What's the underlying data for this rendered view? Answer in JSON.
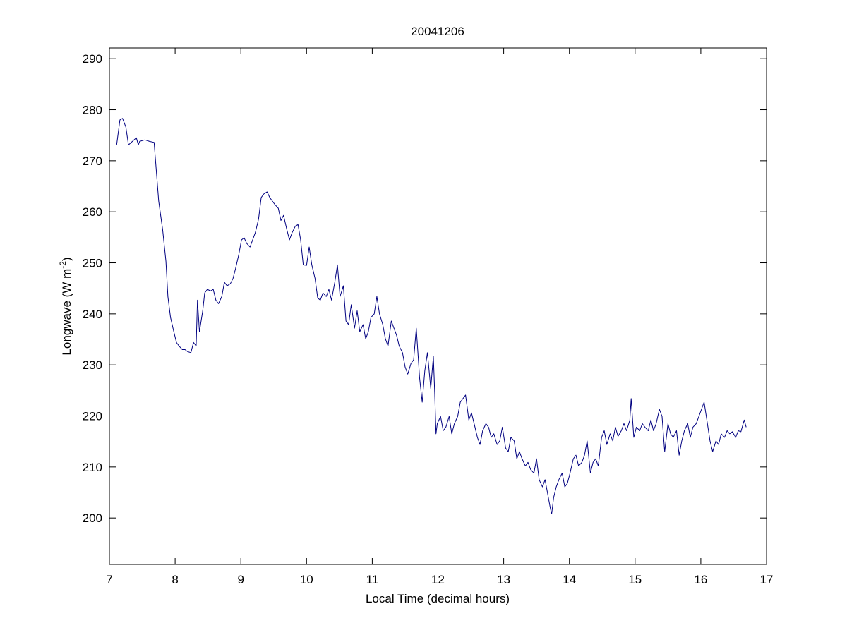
{
  "chart_data": {
    "type": "line",
    "title": "20041206",
    "xlabel": "Local Time (decimal hours)",
    "ylabel": {
      "text": "Longwave (W m",
      "superscript": "-2",
      "suffix": ")"
    },
    "xlim": [
      7,
      17
    ],
    "ylim": [
      190.9,
      292.1
    ],
    "xticks": [
      7,
      8,
      9,
      10,
      11,
      12,
      13,
      14,
      15,
      16,
      17
    ],
    "yticks": [
      200,
      210,
      220,
      230,
      240,
      250,
      260,
      270,
      280,
      290
    ],
    "grid": false,
    "series": [
      {
        "color": "#000080",
        "x": [
          7.11,
          7.16,
          7.2,
          7.25,
          7.29,
          7.35,
          7.41,
          7.44,
          7.46,
          7.54,
          7.61,
          7.68,
          7.75,
          7.81,
          7.86,
          7.89,
          7.93,
          7.98,
          8.02,
          8.06,
          8.11,
          8.15,
          8.19,
          8.24,
          8.28,
          8.32,
          8.34,
          8.37,
          8.42,
          8.45,
          8.49,
          8.54,
          8.58,
          8.62,
          8.66,
          8.71,
          8.75,
          8.79,
          8.84,
          8.88,
          8.92,
          8.97,
          9.01,
          9.05,
          9.09,
          9.14,
          9.18,
          9.22,
          9.27,
          9.31,
          9.35,
          9.4,
          9.44,
          9.48,
          9.52,
          9.57,
          9.61,
          9.65,
          9.7,
          9.74,
          9.78,
          9.83,
          9.87,
          9.91,
          9.95,
          10.0,
          10.04,
          10.08,
          10.13,
          10.17,
          10.21,
          10.25,
          10.3,
          10.34,
          10.38,
          10.43,
          10.47,
          10.51,
          10.56,
          10.6,
          10.64,
          10.68,
          10.73,
          10.77,
          10.81,
          10.86,
          10.9,
          10.94,
          10.98,
          11.03,
          11.07,
          11.11,
          11.16,
          11.2,
          11.24,
          11.29,
          11.33,
          11.37,
          11.41,
          11.46,
          11.5,
          11.54,
          11.59,
          11.63,
          11.67,
          11.72,
          11.76,
          11.8,
          11.84,
          11.89,
          11.93,
          11.95,
          11.97,
          11.99,
          12.04,
          12.08,
          12.12,
          12.17,
          12.21,
          12.25,
          12.3,
          12.34,
          12.38,
          12.42,
          12.47,
          12.51,
          12.55,
          12.6,
          12.64,
          12.68,
          12.73,
          12.77,
          12.81,
          12.85,
          12.9,
          12.94,
          12.98,
          13.03,
          13.07,
          13.11,
          13.16,
          13.2,
          13.24,
          13.28,
          13.33,
          13.37,
          13.41,
          13.46,
          13.5,
          13.54,
          13.59,
          13.63,
          13.67,
          13.71,
          13.73,
          13.76,
          13.8,
          13.84,
          13.89,
          13.93,
          13.97,
          14.01,
          14.06,
          14.1,
          14.14,
          14.19,
          14.23,
          14.27,
          14.32,
          14.36,
          14.4,
          14.44,
          14.49,
          14.53,
          14.57,
          14.62,
          14.66,
          14.7,
          14.74,
          14.79,
          14.83,
          14.87,
          14.92,
          14.94,
          14.98,
          15.02,
          15.07,
          15.11,
          15.15,
          15.2,
          15.24,
          15.28,
          15.32,
          15.37,
          15.41,
          15.45,
          15.5,
          15.54,
          15.58,
          15.63,
          15.67,
          15.71,
          15.75,
          15.8,
          15.84,
          15.88,
          15.93,
          15.97,
          16.01,
          16.05,
          16.1,
          16.14,
          16.18,
          16.23,
          16.27,
          16.31,
          16.36,
          16.4,
          16.44,
          16.48,
          16.53,
          16.57,
          16.61,
          16.66,
          16.69
        ],
        "values": [
          273.1,
          278.0,
          278.3,
          276.6,
          273.1,
          273.8,
          274.5,
          273.1,
          273.8,
          274.1,
          273.8,
          273.6,
          262.1,
          256.5,
          250.3,
          243.4,
          239.3,
          236.5,
          234.4,
          233.7,
          233.0,
          233.0,
          232.6,
          232.4,
          234.4,
          233.7,
          242.7,
          236.5,
          240.6,
          244.1,
          244.8,
          244.5,
          244.8,
          242.7,
          242.0,
          243.4,
          246.2,
          245.5,
          245.9,
          246.9,
          248.9,
          251.7,
          254.5,
          254.9,
          253.8,
          253.1,
          254.5,
          255.9,
          258.6,
          262.8,
          263.5,
          263.9,
          262.8,
          262.1,
          261.4,
          260.7,
          258.3,
          259.3,
          256.5,
          254.5,
          255.9,
          257.2,
          257.5,
          254.5,
          249.6,
          249.5,
          253.1,
          249.6,
          246.9,
          243.1,
          242.7,
          244.1,
          243.4,
          244.8,
          242.7,
          246.2,
          249.6,
          243.4,
          245.5,
          238.6,
          237.9,
          241.8,
          237.2,
          240.6,
          236.5,
          237.9,
          235.1,
          236.5,
          239.3,
          240.0,
          243.4,
          240.0,
          237.9,
          235.1,
          233.7,
          238.6,
          237.2,
          235.8,
          233.7,
          232.4,
          229.6,
          228.2,
          230.3,
          231.0,
          237.2,
          227.5,
          222.7,
          228.9,
          232.4,
          225.4,
          231.7,
          224.7,
          216.5,
          218.5,
          219.9,
          217.1,
          217.8,
          219.9,
          216.5,
          218.5,
          219.9,
          222.7,
          223.4,
          224.1,
          219.2,
          220.6,
          218.5,
          215.8,
          214.4,
          217.1,
          218.5,
          217.8,
          215.8,
          216.5,
          214.4,
          215.1,
          217.8,
          213.7,
          213.0,
          215.8,
          215.1,
          211.6,
          213.0,
          211.6,
          210.2,
          210.9,
          209.5,
          208.8,
          211.6,
          207.5,
          206.1,
          207.5,
          204.7,
          201.9,
          200.8,
          204.0,
          206.1,
          207.5,
          208.8,
          206.1,
          206.8,
          208.8,
          211.6,
          212.3,
          210.2,
          210.9,
          212.3,
          215.1,
          208.8,
          210.9,
          211.6,
          210.2,
          215.8,
          217.1,
          214.4,
          216.5,
          215.1,
          217.8,
          216.0,
          217.1,
          218.5,
          217.1,
          219.2,
          223.4,
          215.8,
          217.8,
          217.1,
          218.5,
          217.8,
          217.1,
          219.2,
          217.1,
          218.5,
          221.3,
          219.9,
          213.0,
          218.5,
          216.5,
          215.8,
          217.1,
          212.3,
          215.1,
          217.1,
          218.5,
          215.8,
          217.8,
          218.5,
          219.9,
          221.3,
          222.7,
          218.5,
          215.1,
          213.0,
          215.1,
          214.4,
          216.5,
          215.8,
          217.1,
          216.5,
          216.9,
          215.8,
          217.1,
          216.9,
          219.2,
          217.8
        ]
      }
    ]
  }
}
